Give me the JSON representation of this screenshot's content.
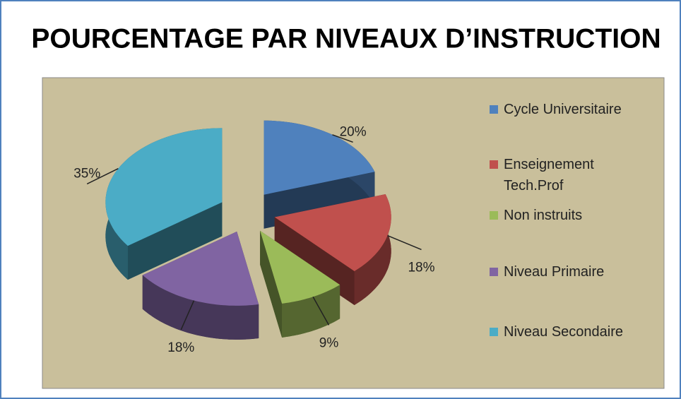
{
  "chart_data": {
    "type": "pie",
    "title": "POURCENTAGE PAR NIVEAUX D’INSTRUCTION",
    "categories": [
      "Cycle Universitaire",
      "Enseignement Tech.Prof",
      "Non instruits",
      "Niveau Primaire",
      "Niveau Secondaire"
    ],
    "values": [
      20,
      18,
      9,
      18,
      35
    ],
    "value_labels": [
      "20%",
      "18%",
      "9%",
      "18%",
      "35%"
    ],
    "colors": [
      "#4f81bd",
      "#c0504d",
      "#9bbb59",
      "#8064a2",
      "#4bacc6"
    ],
    "legend": "right"
  }
}
